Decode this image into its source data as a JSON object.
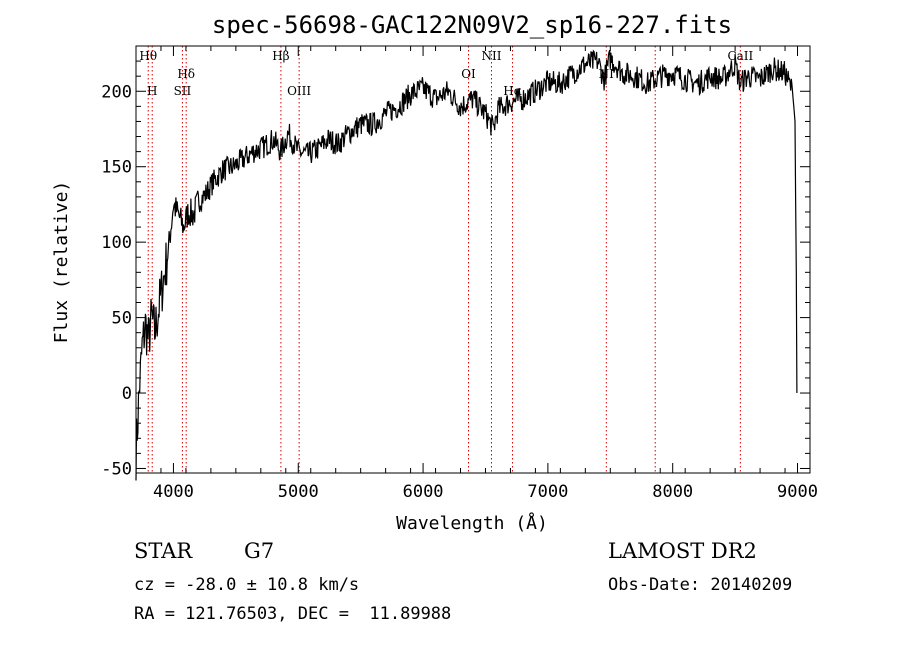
{
  "chart_data": {
    "type": "line",
    "title": "spec-56698-GAC122N09V2_sp16-227.fits",
    "xlabel": "Wavelength (Å)",
    "ylabel": "Flux (relative)",
    "xlim": [
      3700,
      9100
    ],
    "ylim": [
      -53,
      230
    ],
    "x_ticks": [
      4000,
      5000,
      6000,
      7000,
      8000,
      9000
    ],
    "y_ticks": [
      -50,
      0,
      50,
      100,
      150,
      200
    ],
    "grid": false,
    "line_color": "#000000",
    "marker_color": "#cc0000",
    "series": [
      {
        "x": [
          3700,
          3725,
          3750,
          3775,
          3800,
          3825,
          3850,
          3880,
          3920,
          3960,
          4000,
          4040,
          4080,
          4120,
          4160,
          4200,
          4260,
          4320,
          4400,
          4480,
          4560,
          4640,
          4720,
          4800,
          4860,
          4920,
          5000,
          5080,
          5160,
          5240,
          5320,
          5400,
          5500,
          5600,
          5700,
          5800,
          5900,
          6000,
          6100,
          6200,
          6300,
          6400,
          6500,
          6563,
          6600,
          6700,
          6800,
          6900,
          7000,
          7100,
          7200,
          7300,
          7400,
          7450,
          7500,
          7600,
          7700,
          7800,
          7900,
          8000,
          8100,
          8200,
          8300,
          8400,
          8500,
          8540,
          8600,
          8700,
          8800,
          8900,
          8960,
          8980,
          8990,
          8995
        ],
        "y": [
          -40,
          0,
          30,
          45,
          35,
          50,
          40,
          55,
          75,
          95,
          125,
          118,
          110,
          120,
          118,
          127,
          132,
          140,
          148,
          150,
          155,
          160,
          163,
          168,
          160,
          172,
          160,
          158,
          162,
          168,
          165,
          172,
          178,
          178,
          185,
          190,
          198,
          202,
          195,
          200,
          190,
          195,
          185,
          175,
          188,
          193,
          195,
          200,
          206,
          205,
          212,
          218,
          220,
          208,
          222,
          212,
          210,
          205,
          210,
          212,
          208,
          205,
          210,
          208,
          218,
          205,
          210,
          208,
          215,
          212,
          200,
          180,
          80,
          0
        ]
      }
    ],
    "lines": [
      {
        "label": "Hθ",
        "x": 3798,
        "row": "top"
      },
      {
        "label": "H",
        "x": 3830,
        "row": "mid"
      },
      {
        "label": "Hδ",
        "x": 4102,
        "row": "second"
      },
      {
        "label": "SII",
        "x": 4072,
        "row": "mid"
      },
      {
        "label": "Hβ",
        "x": 4861,
        "row": "top"
      },
      {
        "label": "OIII",
        "x": 5007,
        "row": "mid"
      },
      {
        "label": "OI",
        "x": 6364,
        "row": "second"
      },
      {
        "label": "NII",
        "x": 6548,
        "row": "top"
      },
      {
        "label": "Hα",
        "x": 6717,
        "row": "mid"
      },
      {
        "label": "NI",
        "x": 7468,
        "row": "second"
      },
      {
        "label": "",
        "x": 7860,
        "row": "none"
      },
      {
        "label": "CaII",
        "x": 8542,
        "row": "top"
      }
    ]
  },
  "info": {
    "class_label": "STAR",
    "subclass": "G7",
    "cz": "cz = -28.0 ± 10.8 km/s",
    "coords": "RA = 121.76503, DEC =  11.89988",
    "survey": "LAMOST DR2",
    "obs_date": "Obs-Date: 20140209"
  }
}
